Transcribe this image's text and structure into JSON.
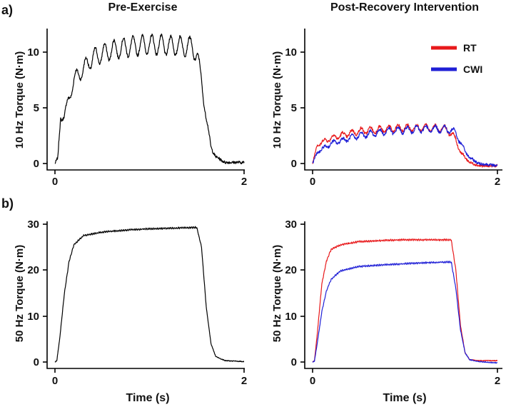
{
  "panel_labels": [
    "a)",
    "b)"
  ],
  "chart_data": [
    {
      "id": "a-left",
      "type": "line",
      "title": "Pre-Exercise",
      "xlabel": "",
      "ylabel": "10 Hz Torque (N·m)",
      "xlim": [
        0,
        2
      ],
      "ylim": [
        -0.3,
        12
      ],
      "xticks": [
        0,
        2
      ],
      "yticks": [
        0,
        5,
        10
      ],
      "stim_hz": 10,
      "series": [
        {
          "name": "Pre",
          "color": "#000000",
          "x": [
            0,
            0.03,
            0.06,
            0.1,
            0.2,
            0.4,
            0.6,
            0.8,
            1.0,
            1.2,
            1.45,
            1.5,
            1.55,
            1.6,
            1.65,
            1.7,
            1.8,
            2.0
          ],
          "y": [
            0,
            0.5,
            4.2,
            4.3,
            7.5,
            9.5,
            10.2,
            10.5,
            10.7,
            10.6,
            10.5,
            9.8,
            7.5,
            4.0,
            1.5,
            0.6,
            0.1,
            0.1
          ]
        }
      ]
    },
    {
      "id": "a-right",
      "type": "line",
      "title": "Post-Recovery Intervention",
      "xlabel": "",
      "ylabel": "10 Hz Torque (N·m)",
      "xlim": [
        0,
        2
      ],
      "ylim": [
        -0.3,
        12
      ],
      "xticks": [
        0,
        2
      ],
      "yticks": [
        0,
        5,
        10
      ],
      "stim_hz": 10,
      "legend": {
        "position": "top-right",
        "entries": [
          {
            "name": "RT",
            "color": "#e8191b"
          },
          {
            "name": "CWI",
            "color": "#1f1fd6"
          }
        ]
      },
      "series": [
        {
          "name": "RT",
          "color": "#e8191b",
          "x": [
            0,
            0.05,
            0.2,
            0.5,
            0.8,
            1.0,
            1.2,
            1.45,
            1.55,
            1.6,
            1.7,
            1.8,
            2.0
          ],
          "y": [
            0,
            1.7,
            2.3,
            2.9,
            3.1,
            3.2,
            3.2,
            3.1,
            2.2,
            1.0,
            0.1,
            -0.2,
            -0.2
          ]
        },
        {
          "name": "CWI",
          "color": "#1f1fd6",
          "x": [
            0,
            0.05,
            0.2,
            0.5,
            0.8,
            1.0,
            1.2,
            1.45,
            1.55,
            1.6,
            1.7,
            1.8,
            2.0
          ],
          "y": [
            0,
            1.0,
            1.8,
            2.5,
            2.9,
            3.0,
            3.1,
            3.1,
            2.8,
            1.8,
            0.5,
            0.0,
            -0.2
          ]
        }
      ]
    },
    {
      "id": "b-left",
      "type": "line",
      "title": "",
      "xlabel": "Time (s)",
      "ylabel": "50 Hz Torque (N·m)",
      "xlim": [
        0,
        2
      ],
      "ylim": [
        -0.5,
        30
      ],
      "xticks": [
        0,
        2
      ],
      "yticks": [
        0,
        10,
        20,
        30
      ],
      "stim_hz": 50,
      "series": [
        {
          "name": "Pre",
          "color": "#000000",
          "x": [
            0,
            0.02,
            0.05,
            0.1,
            0.15,
            0.2,
            0.3,
            0.5,
            0.8,
            1.0,
            1.2,
            1.5,
            1.55,
            1.6,
            1.65,
            1.7,
            1.8,
            2.0
          ],
          "y": [
            0,
            0.3,
            5,
            15,
            22,
            25.5,
            27.5,
            28.3,
            28.8,
            29.0,
            29.1,
            29.3,
            25,
            12,
            4,
            1.2,
            0.3,
            0.1
          ]
        }
      ]
    },
    {
      "id": "b-right",
      "type": "line",
      "title": "",
      "xlabel": "Time (s)",
      "ylabel": "50 Hz Torque (N·m)",
      "xlim": [
        0,
        2
      ],
      "ylim": [
        -0.5,
        30
      ],
      "xticks": [
        0,
        2
      ],
      "yticks": [
        0,
        10,
        20,
        30
      ],
      "stim_hz": 50,
      "series": [
        {
          "name": "RT",
          "color": "#e8191b",
          "x": [
            0,
            0.02,
            0.05,
            0.1,
            0.15,
            0.2,
            0.3,
            0.5,
            0.8,
            1.0,
            1.2,
            1.5,
            1.55,
            1.6,
            1.65,
            1.7,
            1.8,
            2.0
          ],
          "y": [
            0,
            0.3,
            6,
            17,
            22,
            24.5,
            25.5,
            26.2,
            26.5,
            26.6,
            26.6,
            26.6,
            20,
            8,
            2,
            0.5,
            0.3,
            0.3
          ]
        },
        {
          "name": "CWI",
          "color": "#1f1fd6",
          "x": [
            0,
            0.02,
            0.05,
            0.1,
            0.15,
            0.2,
            0.3,
            0.5,
            0.8,
            1.0,
            1.2,
            1.5,
            1.55,
            1.6,
            1.65,
            1.7,
            1.8,
            2.0
          ],
          "y": [
            0,
            0.2,
            4,
            11,
            15.5,
            18,
            19.8,
            20.8,
            21.2,
            21.4,
            21.6,
            21.8,
            16,
            7,
            2,
            0.5,
            0.1,
            -0.2
          ]
        }
      ]
    }
  ]
}
